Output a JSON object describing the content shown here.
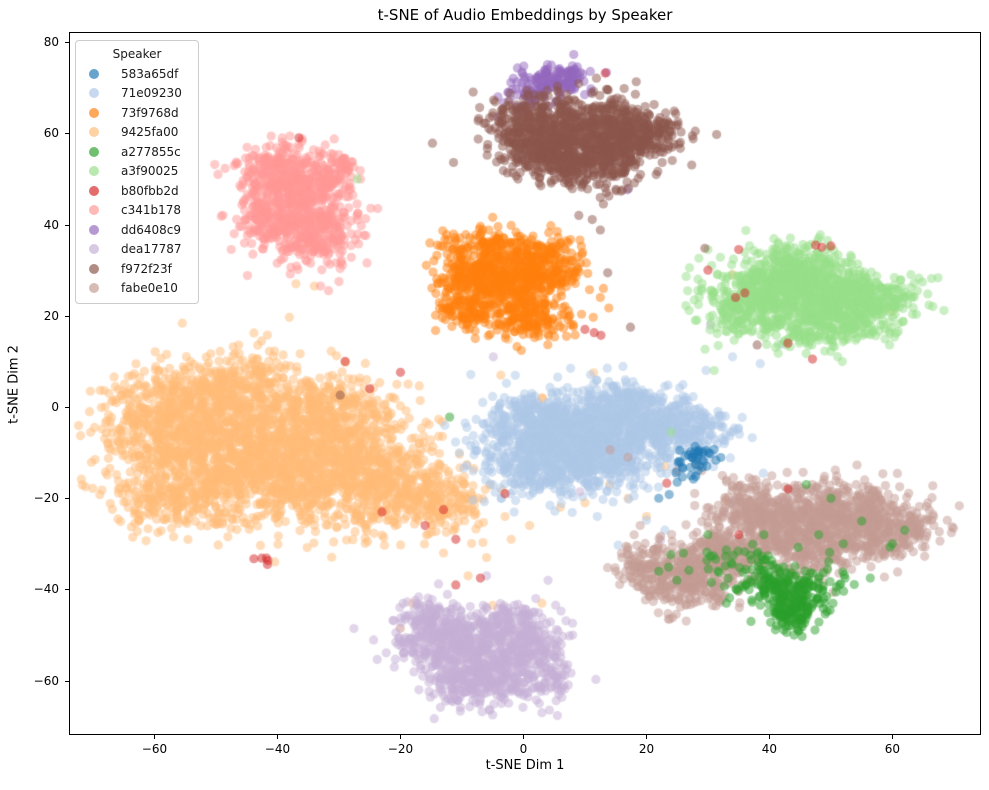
{
  "chart_data": {
    "type": "scatter",
    "title": "t-SNE of Audio Embeddings by Speaker",
    "xlabel": "t-SNE Dim 1",
    "ylabel": "t-SNE Dim 2",
    "xlim": [
      -73.9,
      74.4
    ],
    "ylim": [
      -71.9,
      82.2
    ],
    "grid": false,
    "point_alpha": 0.5,
    "point_radius_px": 4.6,
    "x_ticks": [
      {
        "v": -60,
        "label": "−60"
      },
      {
        "v": -40,
        "label": "−40"
      },
      {
        "v": -20,
        "label": "−20"
      },
      {
        "v": 0,
        "label": "0"
      },
      {
        "v": 20,
        "label": "20"
      },
      {
        "v": 40,
        "label": "40"
      },
      {
        "v": 60,
        "label": "60"
      }
    ],
    "y_ticks": [
      {
        "v": 80,
        "label": "80"
      },
      {
        "v": 60,
        "label": "60"
      },
      {
        "v": 40,
        "label": "40"
      },
      {
        "v": 20,
        "label": "20"
      },
      {
        "v": 0,
        "label": "0"
      },
      {
        "v": -20,
        "label": "−20"
      },
      {
        "v": -40,
        "label": "−40"
      },
      {
        "v": -60,
        "label": "−60"
      }
    ],
    "legend": {
      "title": "Speaker",
      "position": "upper left",
      "items": [
        {
          "label": "583a65df",
          "color": "#1f77b4"
        },
        {
          "label": "71e09230",
          "color": "#aec7e8"
        },
        {
          "label": "73f9768d",
          "color": "#ff7f0e"
        },
        {
          "label": "9425fa00",
          "color": "#ffbb78"
        },
        {
          "label": "a277855c",
          "color": "#2ca02c"
        },
        {
          "label": "a3f90025",
          "color": "#98df8a"
        },
        {
          "label": "b80fbb2d",
          "color": "#d62728"
        },
        {
          "label": "c341b178",
          "color": "#ff9896"
        },
        {
          "label": "dd6408c9",
          "color": "#9467bd"
        },
        {
          "label": "dea17787",
          "color": "#c5b0d5"
        },
        {
          "label": "f972f23f",
          "color": "#8c564b"
        },
        {
          "label": "fabe0e10",
          "color": "#c49c94"
        }
      ]
    },
    "series": [
      {
        "name": "583a65df",
        "color": "#1f77b4",
        "clusters": [
          [
            28.7,
            -10.8,
            1.3,
            1.1,
            26
          ],
          [
            26.5,
            -13.8,
            1.8,
            1.3,
            14
          ]
        ],
        "points": [
          [
            22,
            -20
          ],
          [
            23.7,
            -19.2
          ],
          [
            31,
            -9.3
          ],
          [
            25,
            -16.5
          ],
          [
            29.8,
            -13
          ]
        ]
      },
      {
        "name": "71e09230",
        "color": "#aec7e8",
        "clusters": [
          [
            3,
            -5,
            5,
            4.2,
            550
          ],
          [
            12,
            -7,
            5,
            4.5,
            450
          ],
          [
            9,
            -13,
            6,
            3.5,
            300
          ],
          [
            21,
            -3.5,
            4,
            3.3,
            250
          ],
          [
            28,
            -5,
            3.5,
            3,
            150
          ],
          [
            16,
            1,
            3.5,
            2.5,
            120
          ],
          [
            1,
            -14,
            3.5,
            3,
            120
          ]
        ],
        "points": [
          [
            39,
            -14.5
          ],
          [
            34,
            -21
          ],
          [
            20,
            -24.8
          ],
          [
            15.4,
            -30.3
          ],
          [
            23,
            -27
          ],
          [
            12,
            -24
          ],
          [
            42,
            13.8
          ],
          [
            38.5,
            9.5
          ],
          [
            34,
            11
          ]
        ]
      },
      {
        "name": "73f9768d",
        "color": "#ff7f0e",
        "clusters": [
          [
            -8,
            30,
            3.2,
            3.2,
            220
          ],
          [
            -2,
            26,
            4.2,
            3.8,
            320
          ],
          [
            3,
            31,
            3.2,
            3,
            220
          ],
          [
            -10,
            21.5,
            2.3,
            2.3,
            90
          ],
          [
            1,
            19,
            3.5,
            2.2,
            130
          ],
          [
            -5,
            35,
            3,
            1.8,
            80
          ]
        ],
        "points": [
          [
            -14,
            35.5
          ],
          [
            -7,
            39.6
          ],
          [
            -2,
            39.8
          ],
          [
            13,
            26
          ],
          [
            12.5,
            24
          ],
          [
            8.4,
            15.8
          ],
          [
            7,
            15.5
          ]
        ]
      },
      {
        "name": "9425fa00",
        "color": "#ffbb78",
        "clusters": [
          [
            -52,
            -8,
            7.5,
            6.5,
            800
          ],
          [
            -38,
            -13,
            8,
            6.5,
            800
          ],
          [
            -25,
            -15,
            6.5,
            5.5,
            500
          ],
          [
            -46,
            4,
            6,
            4,
            320
          ],
          [
            -31,
            -1,
            5.5,
            4,
            280
          ],
          [
            -15,
            -21,
            4.5,
            3.5,
            200
          ],
          [
            -56,
            -21,
            5.5,
            3.5,
            200
          ],
          [
            -60,
            1,
            4,
            3.5,
            150
          ],
          [
            -40,
            -10,
            13,
            9,
            150
          ]
        ],
        "points": [
          [
            -37,
            27
          ],
          [
            -34,
            26.5
          ],
          [
            -3,
            17.5
          ],
          [
            -2.5,
            14.8
          ],
          [
            3,
            2
          ],
          [
            2,
            0.3
          ],
          [
            14,
            -17
          ],
          [
            20,
            -24
          ],
          [
            33,
            -20.5
          ],
          [
            -5,
            -43.5
          ],
          [
            -12,
            -48
          ],
          [
            -18,
            -43
          ],
          [
            -20,
            -48.5
          ],
          [
            3,
            -43
          ],
          [
            60,
            21
          ],
          [
            34,
            29
          ],
          [
            11.4,
            7.5
          ],
          [
            23,
            -13
          ],
          [
            17,
            -20
          ],
          [
            -6,
            -33
          ],
          [
            -2,
            -29
          ],
          [
            -9,
            -37
          ],
          [
            1,
            -26
          ],
          [
            6,
            -22
          ],
          [
            10,
            -21
          ],
          [
            -13,
            -32
          ],
          [
            -3,
            -24
          ]
        ]
      },
      {
        "name": "a277855c",
        "color": "#2ca02c",
        "clusters": [
          [
            43.5,
            -44,
            2.2,
            2.6,
            170
          ],
          [
            41,
            -38.5,
            2.8,
            2.2,
            90
          ],
          [
            35,
            -35,
            4.5,
            3,
            60
          ],
          [
            48,
            -39,
            3,
            2.5,
            50
          ]
        ],
        "points": [
          [
            -12,
            -2.2
          ],
          [
            60,
            -30
          ],
          [
            56.4,
            -37.5
          ],
          [
            52.3,
            -37.5
          ],
          [
            59.6,
            -30.7
          ],
          [
            62,
            -27
          ],
          [
            50,
            -20
          ],
          [
            46,
            -17
          ],
          [
            30,
            -28
          ],
          [
            26,
            -32
          ],
          [
            22,
            -36
          ],
          [
            33,
            -43
          ],
          [
            37,
            -47
          ],
          [
            44,
            -50
          ],
          [
            52,
            -30
          ],
          [
            55,
            -25
          ],
          [
            48,
            -28
          ]
        ]
      },
      {
        "name": "a3f90025",
        "color": "#98df8a",
        "clusters": [
          [
            40,
            25,
            4.5,
            4,
            400
          ],
          [
            50,
            24,
            4.8,
            3.8,
            400
          ],
          [
            45,
            30.5,
            4,
            2.8,
            200
          ],
          [
            57,
            22.5,
            4,
            3,
            180
          ],
          [
            34,
            21,
            2.5,
            2.8,
            90
          ],
          [
            47,
            16,
            5,
            2,
            120
          ]
        ],
        "points": [
          [
            30,
            34.5
          ],
          [
            27,
            30.5
          ],
          [
            -27,
            50
          ],
          [
            24,
            -5.5
          ],
          [
            63,
            29
          ],
          [
            31,
            8
          ]
        ]
      },
      {
        "name": "b80fbb2d",
        "color": "#d62728",
        "clusters": [
          [
            -42.7,
            -33.2,
            0.9,
            0.5,
            5
          ]
        ],
        "points": [
          [
            -29,
            10
          ],
          [
            -20,
            7.6
          ],
          [
            -16,
            -26
          ],
          [
            -13,
            -22.5
          ],
          [
            -11,
            -29
          ],
          [
            -7,
            -37.5
          ],
          [
            -23,
            -23
          ],
          [
            -3,
            -19
          ],
          [
            10,
            17
          ],
          [
            11.5,
            16.3
          ],
          [
            12.6,
            15.7
          ],
          [
            -11,
            -39
          ],
          [
            23.3,
            -16.7
          ],
          [
            30,
            30
          ],
          [
            35,
            34.5
          ],
          [
            36,
            25
          ],
          [
            43,
            14
          ],
          [
            34.5,
            24
          ],
          [
            47.5,
            35.5
          ],
          [
            48.5,
            35
          ],
          [
            50,
            35.3
          ],
          [
            13.3,
            73.2
          ],
          [
            -36.5,
            59
          ],
          [
            43,
            -18
          ],
          [
            35,
            -28
          ],
          [
            47,
            10.5
          ],
          [
            -25,
            4
          ]
        ]
      },
      {
        "name": "c341b178",
        "color": "#ff9896",
        "clusters": [
          [
            -37,
            46,
            4.2,
            4.8,
            380
          ],
          [
            -34,
            38,
            3.8,
            3.5,
            220
          ],
          [
            -40,
            52,
            3.2,
            2.8,
            150
          ],
          [
            -31,
            51,
            2.5,
            2.5,
            90
          ],
          [
            -42,
            40,
            2.5,
            2.5,
            80
          ]
        ],
        "points": [
          [
            -30,
            27.5
          ],
          [
            -33,
            26.5
          ],
          [
            -38,
            59.4
          ],
          [
            -36,
            58.8
          ],
          [
            -26.5,
            50
          ],
          [
            -44,
            33.5
          ]
        ]
      },
      {
        "name": "dd6408c9",
        "color": "#9467bd",
        "clusters": [
          [
            5,
            71.5,
            2.6,
            1.9,
            110
          ],
          [
            1.5,
            69,
            2.2,
            1.8,
            55
          ],
          [
            8,
            73,
            1.5,
            1.2,
            30
          ]
        ],
        "points": [
          [
            12.5,
            58.5
          ],
          [
            16.9,
            47.6
          ],
          [
            -4.1,
            63.6
          ],
          [
            13.5,
            73.3
          ],
          [
            11,
            69
          ],
          [
            -1,
            64.5
          ]
        ]
      },
      {
        "name": "dea17787",
        "color": "#c5b0d5",
        "clusters": [
          [
            -12,
            -52,
            4.2,
            3.8,
            320
          ],
          [
            -4,
            -56,
            4.6,
            4.2,
            320
          ],
          [
            -8,
            -61,
            3.8,
            2.8,
            150
          ],
          [
            1,
            -50,
            3,
            3,
            110
          ],
          [
            -15,
            -46.5,
            3,
            2.5,
            90
          ],
          [
            -3,
            -47,
            2.5,
            2,
            70
          ],
          [
            4,
            -59,
            2.5,
            2.5,
            70
          ]
        ],
        "points": [
          [
            -4.9,
            11
          ],
          [
            -6,
            -37
          ],
          [
            4,
            -38
          ],
          [
            -21,
            -57
          ],
          [
            -17,
            -62
          ],
          [
            7,
            -57.5
          ],
          [
            3,
            -67
          ],
          [
            -5,
            -67.5
          ],
          [
            22.3,
            -29.2
          ],
          [
            9.2,
            -18.6
          ],
          [
            30.4,
            18
          ],
          [
            2,
            -42
          ],
          [
            8,
            -50
          ]
        ]
      },
      {
        "name": "f972f23f",
        "color": "#8c564b",
        "clusters": [
          [
            8,
            59,
            5.5,
            3.8,
            420
          ],
          [
            1.5,
            62,
            3.8,
            3.2,
            220
          ],
          [
            16,
            57.5,
            4.2,
            3.2,
            230
          ],
          [
            9,
            52.5,
            5,
            2.8,
            200
          ],
          [
            20,
            61,
            3,
            2.2,
            100
          ],
          [
            13,
            64.5,
            4,
            2.5,
            120
          ],
          [
            5,
            55,
            3,
            2,
            60
          ]
        ],
        "points": [
          [
            -4.6,
            66.9
          ],
          [
            -5.9,
            55.2
          ],
          [
            13,
            44.5
          ],
          [
            12.5,
            38.8
          ],
          [
            23.5,
            56.5
          ],
          [
            25.5,
            56.7
          ],
          [
            29.5,
            34.8
          ],
          [
            38,
            13.6
          ],
          [
            13.7,
            29.4
          ],
          [
            17.4,
            17.5
          ],
          [
            9,
            42
          ],
          [
            -29.8,
            2.6
          ]
        ]
      },
      {
        "name": "fabe0e10",
        "color": "#c49c94",
        "clusters": [
          [
            26,
            -38,
            4.2,
            3.3,
            280
          ],
          [
            33,
            -31.5,
            3.8,
            3.2,
            230
          ],
          [
            43,
            -26,
            4.6,
            3.8,
            330
          ],
          [
            52,
            -22.5,
            4.6,
            3.2,
            320
          ],
          [
            60,
            -26,
            3.8,
            2.8,
            180
          ],
          [
            36,
            -22,
            3.2,
            2.8,
            140
          ],
          [
            47,
            -32,
            3.8,
            2.8,
            140
          ],
          [
            21,
            -34,
            2.8,
            2.8,
            80
          ],
          [
            56,
            -30,
            3,
            2.5,
            90
          ]
        ],
        "points": [
          [
            14.1,
            -9.4
          ],
          [
            17,
            -11
          ],
          [
            25,
            -14
          ],
          [
            28,
            -12.5
          ],
          [
            66,
            -22.6
          ],
          [
            18,
            -28
          ],
          [
            16,
            -33
          ],
          [
            19,
            -33.5
          ],
          [
            15,
            -36
          ],
          [
            29,
            -14
          ],
          [
            33,
            -16
          ]
        ]
      }
    ]
  }
}
